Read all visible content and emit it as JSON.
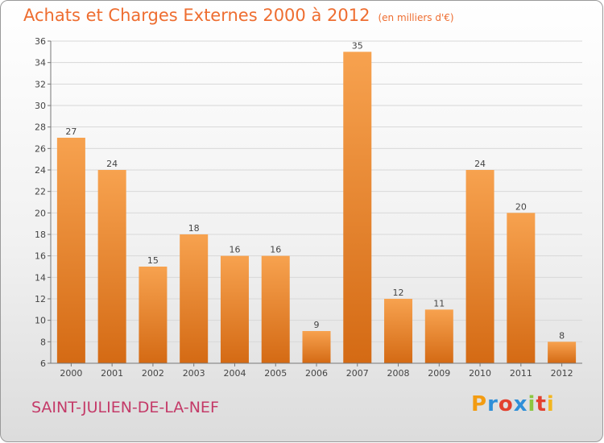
{
  "chart_title": "Achats et Charges Externes 2000 à 2012",
  "chart_subtitle": "(en milliers d'€)",
  "commune_name": "SAINT-JULIEN-DE-LA-NEF",
  "logo": {
    "letters": [
      "P",
      "r",
      "o",
      "x",
      "i",
      "t",
      "i"
    ],
    "colors": [
      "#f39c12",
      "#2f8fd8",
      "#e3412f",
      "#2f8fd8",
      "#8cc63f",
      "#e3412f",
      "#f3b61f"
    ]
  },
  "colors": {
    "bar_light": "#f7a24f",
    "bar_dark": "#d46a14",
    "title": "#ee6d30",
    "commune": "#c43a68"
  },
  "chart_data": {
    "type": "bar",
    "title": "Achats et Charges Externes 2000 à 2012",
    "subtitle": "(en milliers d'€)",
    "categories": [
      "2000",
      "2001",
      "2002",
      "2003",
      "2004",
      "2005",
      "2006",
      "2007",
      "2008",
      "2009",
      "2010",
      "2011",
      "2012"
    ],
    "values": [
      27,
      24,
      15,
      18,
      16,
      16,
      9,
      35,
      12,
      11,
      24,
      20,
      8
    ],
    "ylim": [
      6,
      36
    ],
    "yticks": [
      6,
      8,
      10,
      12,
      14,
      16,
      18,
      20,
      22,
      24,
      26,
      28,
      30,
      32,
      34,
      36
    ],
    "grid": true,
    "data_labels": true
  }
}
